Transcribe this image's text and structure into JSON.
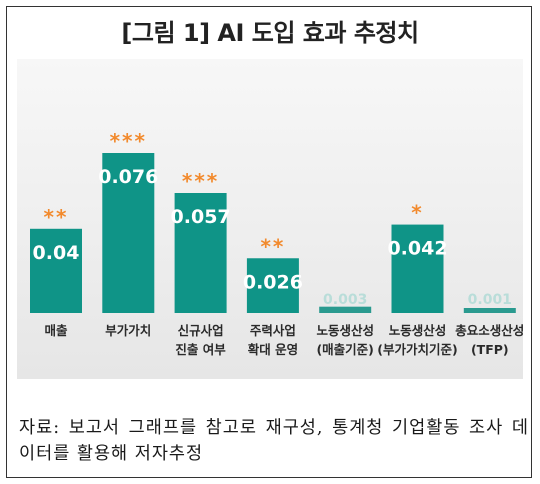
{
  "title": "[그림 1] AI 도입 효과 추정치",
  "source_note": "자료: 보고서 그래프를 참고로 재구성, 통계청 기업활동 조사 데이터를 활용해 저자추정",
  "colors": {
    "bar": "#0f9487",
    "bar_low": "#2a9a8f",
    "star": "#f28a2d",
    "label": "#ffffff",
    "faint_label": "#b9ddd9"
  },
  "chart_data": {
    "type": "bar",
    "title": "[그림 1] AI 도입 효과 추정치",
    "xlabel": "",
    "ylabel": "",
    "ylim": [
      0,
      0.085
    ],
    "grid": false,
    "categories": [
      [
        "매출"
      ],
      [
        "부가가치"
      ],
      [
        "신규사업",
        "진출 여부"
      ],
      [
        "주력사업",
        "확대 운영"
      ],
      [
        "노동생산성",
        "(매출기준)"
      ],
      [
        "노동생산성",
        "(부가가치기준)"
      ],
      [
        "총요소생산성",
        "(TFP)"
      ]
    ],
    "values": [
      0.04,
      0.076,
      0.057,
      0.026,
      0.003,
      0.042,
      0.001
    ],
    "value_labels": [
      "0.04",
      "0.076",
      "0.057",
      "0.026",
      "0.003",
      "0.042",
      "0.001"
    ],
    "significance": [
      "**",
      "***",
      "***",
      "**",
      "",
      "*",
      ""
    ]
  }
}
